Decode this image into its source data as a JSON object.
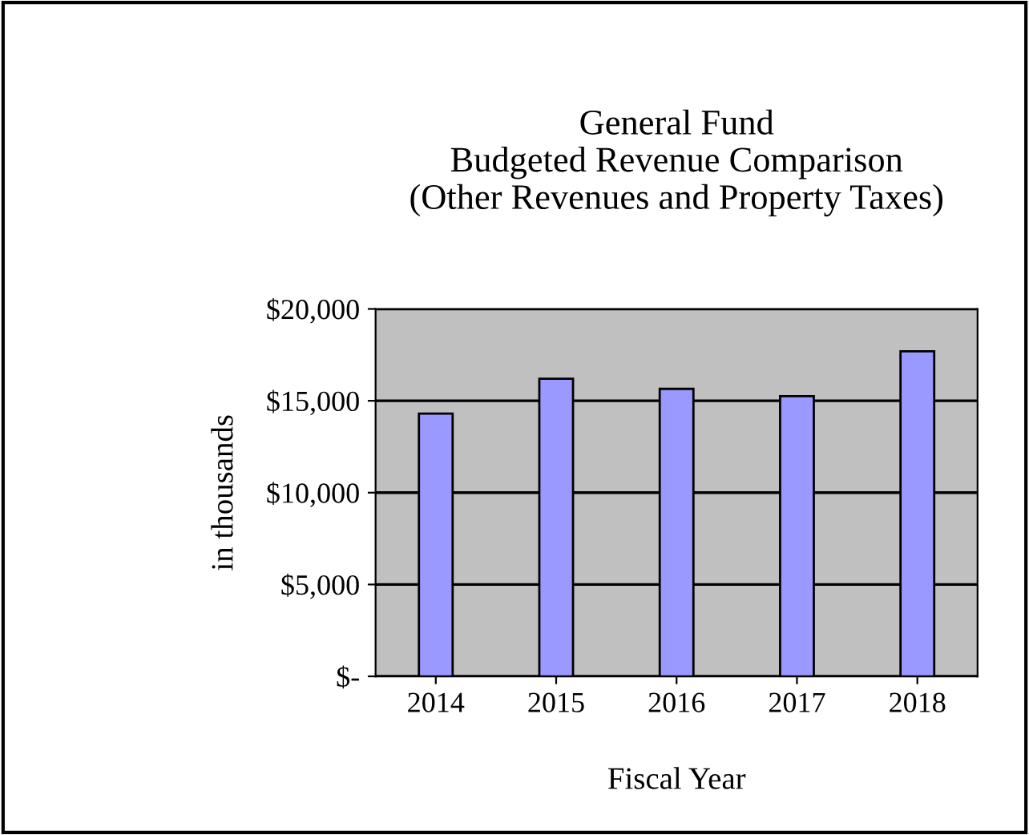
{
  "chart_data": {
    "type": "bar",
    "title": "General Fund\nBudgeted Revenue Comparison\n(Other Revenues and Property Taxes)",
    "xlabel": "Fiscal Year",
    "ylabel": "in thousands",
    "categories": [
      "2014",
      "2015",
      "2016",
      "2017",
      "2018"
    ],
    "values": [
      14300,
      16200,
      15650,
      15250,
      17700
    ],
    "color": "#9999ff",
    "ylim": [
      0,
      20000
    ],
    "yticks": [
      {
        "value": 0,
        "label": "$-"
      },
      {
        "value": 5000,
        "label": "$5,000"
      },
      {
        "value": 10000,
        "label": "$10,000"
      },
      {
        "value": 15000,
        "label": "$15,000"
      },
      {
        "value": 20000,
        "label": "$20,000"
      }
    ],
    "grid": "y"
  }
}
